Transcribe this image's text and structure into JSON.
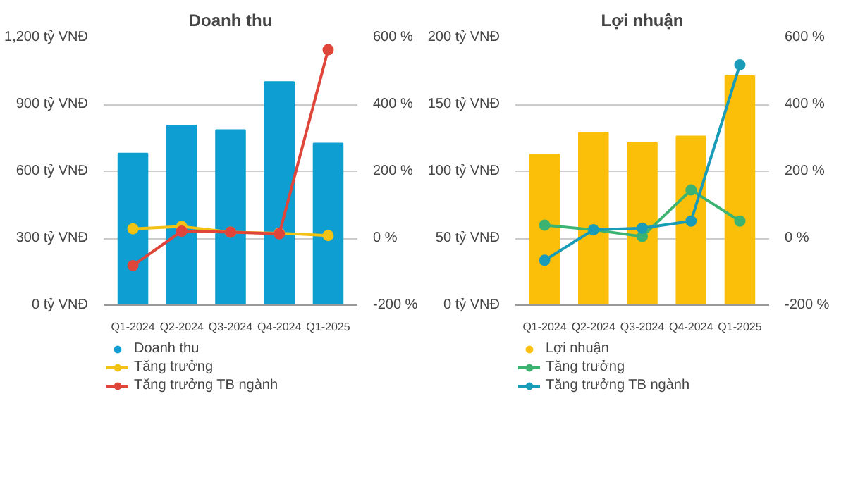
{
  "chart_data": [
    {
      "type": "bar",
      "title": "Doanh thu",
      "categories": [
        "Q1-2024",
        "Q2-2024",
        "Q3-2024",
        "Q4-2024",
        "Q1-2025"
      ],
      "series": [
        {
          "name": "Doanh thu",
          "color": "#0e9ed1",
          "values": [
            680,
            805,
            785,
            1000,
            725
          ]
        },
        {
          "name": "Tăng trưởng",
          "type": "line",
          "axis": "y2",
          "marker": "circle",
          "color": "#f2c314",
          "values": [
            28,
            35,
            18,
            15,
            8
          ]
        },
        {
          "name": "Tăng trưởng TB ngành",
          "type": "line",
          "axis": "y2",
          "marker": "circle",
          "color": "#e0453a",
          "values": [
            -82,
            21,
            18,
            13,
            563
          ]
        }
      ],
      "ylim": [
        0,
        1200
      ],
      "yticks": [
        {
          "value": 0,
          "label": "0 tỷ VNĐ"
        },
        {
          "value": 300,
          "label": "300 tỷ VNĐ"
        },
        {
          "value": 600,
          "label": "600 tỷ VNĐ"
        },
        {
          "value": 900,
          "label": "900 tỷ VNĐ"
        },
        {
          "value": 1200,
          "label": "1,200 tỷ VNĐ"
        }
      ],
      "y2lim": [
        -200,
        600
      ],
      "y2ticks": [
        {
          "value": -200,
          "label": "-200 %"
        },
        {
          "value": 0,
          "label": "0 %"
        },
        {
          "value": 200,
          "label": "200 %"
        },
        {
          "value": 400,
          "label": "400 %"
        },
        {
          "value": 600,
          "label": "600 %"
        }
      ],
      "grid": "y",
      "legend": "bottom"
    },
    {
      "type": "bar",
      "title": "Lợi nhuận",
      "categories": [
        "Q1-2024",
        "Q2-2024",
        "Q3-2024",
        "Q4-2024",
        "Q1-2025"
      ],
      "series": [
        {
          "name": "Lợi nhuận",
          "color": "#fbbf09",
          "values": [
            112.5,
            129,
            121.5,
            126,
            171
          ]
        },
        {
          "name": "Tăng trưởng",
          "type": "line",
          "axis": "y2",
          "marker": "circle",
          "color": "#3cb371",
          "values": [
            39,
            25,
            5,
            144,
            51
          ]
        },
        {
          "name": "Tăng trưởng TB ngành",
          "type": "line",
          "axis": "y2",
          "marker": "circle",
          "color": "#1a9cb8",
          "values": [
            -66,
            25,
            30,
            51,
            518
          ]
        }
      ],
      "ylim": [
        0,
        200
      ],
      "yticks": [
        {
          "value": 0,
          "label": "0 tỷ VNĐ"
        },
        {
          "value": 50,
          "label": "50 tỷ VNĐ"
        },
        {
          "value": 100,
          "label": "100 tỷ VNĐ"
        },
        {
          "value": 150,
          "label": "150 tỷ VNĐ"
        },
        {
          "value": 200,
          "label": "200 tỷ VNĐ"
        }
      ],
      "y2lim": [
        -200,
        600
      ],
      "y2ticks": [
        {
          "value": -200,
          "label": "-200 %"
        },
        {
          "value": 0,
          "label": "0 %"
        },
        {
          "value": 200,
          "label": "200 %"
        },
        {
          "value": 400,
          "label": "400 %"
        },
        {
          "value": 600,
          "label": "600 %"
        }
      ],
      "grid": "y",
      "legend": "bottom"
    }
  ]
}
